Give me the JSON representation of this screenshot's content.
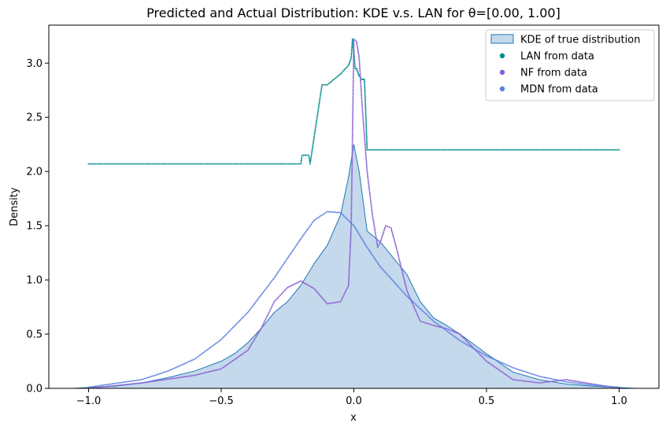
{
  "chart_data": {
    "type": "line",
    "title": "Predicted and Actual Distribution: KDE v.s. LAN for θ=[0.00, 1.00]",
    "xlabel": "x",
    "ylabel": "Density",
    "xlim": [
      -1.15,
      1.15
    ],
    "ylim": [
      0,
      3.35
    ],
    "x_ticks": [
      -1.0,
      -0.5,
      0.0,
      0.5,
      1.0
    ],
    "x_tick_labels": [
      "−1.0",
      "−0.5",
      "0.0",
      "0.5",
      "1.0"
    ],
    "y_ticks": [
      0.0,
      0.5,
      1.0,
      1.5,
      2.0,
      2.5,
      3.0
    ],
    "y_tick_labels": [
      "0.0",
      "0.5",
      "1.0",
      "1.5",
      "2.0",
      "2.5",
      "3.0"
    ],
    "grid": false,
    "legend_position": "top-right",
    "series": [
      {
        "name": "KDE of true distribution",
        "kind": "area",
        "color": "#1f77b4",
        "fill": "#c5d9ec",
        "x": [
          -1.06,
          -0.9,
          -0.8,
          -0.7,
          -0.6,
          -0.5,
          -0.45,
          -0.4,
          -0.35,
          -0.3,
          -0.25,
          -0.2,
          -0.15,
          -0.1,
          -0.05,
          -0.02,
          0.0,
          0.02,
          0.05,
          0.1,
          0.15,
          0.2,
          0.25,
          0.3,
          0.35,
          0.4,
          0.5,
          0.6,
          0.7,
          0.8,
          0.9,
          1.06
        ],
        "y": [
          0.0,
          0.02,
          0.05,
          0.1,
          0.16,
          0.25,
          0.32,
          0.42,
          0.55,
          0.7,
          0.8,
          0.95,
          1.15,
          1.32,
          1.6,
          1.95,
          2.25,
          2.0,
          1.45,
          1.35,
          1.2,
          1.05,
          0.8,
          0.65,
          0.58,
          0.5,
          0.32,
          0.15,
          0.08,
          0.04,
          0.02,
          0.0
        ]
      },
      {
        "name": "LAN from data",
        "kind": "dotted",
        "color": "#008b8b",
        "x": [
          -1.0,
          -0.2,
          -0.195,
          -0.17,
          -0.165,
          -0.12,
          -0.1,
          -0.05,
          -0.02,
          -0.01,
          -0.005,
          0.0,
          0.005,
          0.01,
          0.02,
          0.03,
          0.04,
          0.05,
          1.0
        ],
        "y": [
          2.07,
          2.07,
          2.15,
          2.15,
          2.07,
          2.8,
          2.8,
          2.9,
          2.98,
          3.05,
          3.22,
          3.1,
          2.95,
          2.95,
          2.88,
          2.85,
          2.85,
          2.2,
          2.2
        ]
      },
      {
        "name": "NF from data",
        "kind": "dotted",
        "color": "#8a5fd3",
        "x": [
          -1.0,
          -0.8,
          -0.6,
          -0.5,
          -0.4,
          -0.35,
          -0.3,
          -0.25,
          -0.2,
          -0.15,
          -0.1,
          -0.05,
          -0.02,
          -0.01,
          0.0,
          0.01,
          0.02,
          0.03,
          0.05,
          0.07,
          0.09,
          0.1,
          0.12,
          0.14,
          0.16,
          0.2,
          0.25,
          0.3,
          0.35,
          0.4,
          0.5,
          0.6,
          0.7,
          0.8,
          0.85,
          1.0
        ],
        "y": [
          0.0,
          0.05,
          0.12,
          0.18,
          0.35,
          0.55,
          0.8,
          0.93,
          0.99,
          0.92,
          0.78,
          0.8,
          0.95,
          1.5,
          3.22,
          3.2,
          3.05,
          2.65,
          2.0,
          1.6,
          1.3,
          1.35,
          1.5,
          1.48,
          1.3,
          0.9,
          0.62,
          0.58,
          0.55,
          0.5,
          0.25,
          0.08,
          0.05,
          0.08,
          0.06,
          0.0
        ]
      },
      {
        "name": "MDN from data",
        "kind": "dotted",
        "color": "#5b7fe0",
        "x": [
          -1.0,
          -0.8,
          -0.7,
          -0.6,
          -0.5,
          -0.4,
          -0.3,
          -0.2,
          -0.15,
          -0.1,
          -0.05,
          0.0,
          0.05,
          0.1,
          0.2,
          0.3,
          0.4,
          0.5,
          0.6,
          0.7,
          0.8,
          0.9,
          1.0
        ],
        "y": [
          0.01,
          0.08,
          0.16,
          0.27,
          0.45,
          0.7,
          1.02,
          1.38,
          1.55,
          1.63,
          1.62,
          1.5,
          1.3,
          1.12,
          0.85,
          0.62,
          0.44,
          0.3,
          0.19,
          0.11,
          0.06,
          0.03,
          0.01
        ]
      }
    ]
  }
}
